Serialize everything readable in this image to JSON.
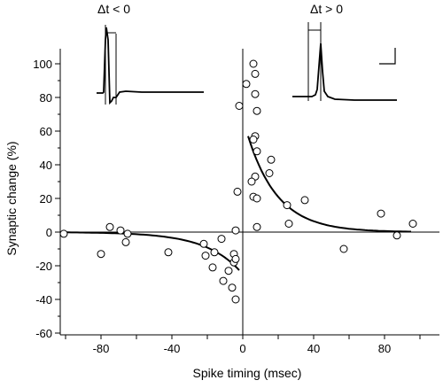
{
  "chart_data": {
    "type": "scatter",
    "title": "",
    "xlabel": "Spike timing (msec)",
    "ylabel": "Synaptic change (%)",
    "xlim": [
      -105,
      100
    ],
    "ylim": [
      -60,
      105
    ],
    "x_ticks": [
      -80,
      -40,
      0,
      40,
      80
    ],
    "y_ticks": [
      -60,
      -40,
      -20,
      0,
      20,
      40,
      60,
      80,
      100
    ],
    "grid": false,
    "inset_labels": {
      "left": "Δt < 0",
      "right": "Δt > 0"
    },
    "points": [
      {
        "x": -101,
        "y": -1
      },
      {
        "x": -80,
        "y": -13
      },
      {
        "x": -75,
        "y": 3
      },
      {
        "x": -69,
        "y": 1
      },
      {
        "x": -66,
        "y": -6
      },
      {
        "x": -65,
        "y": -1
      },
      {
        "x": -42,
        "y": -12
      },
      {
        "x": -22,
        "y": -7
      },
      {
        "x": -21,
        "y": -14
      },
      {
        "x": -17,
        "y": -21
      },
      {
        "x": -16,
        "y": -12
      },
      {
        "x": -12,
        "y": -4
      },
      {
        "x": -11,
        "y": -29
      },
      {
        "x": -8,
        "y": -23
      },
      {
        "x": -6,
        "y": -33
      },
      {
        "x": -5,
        "y": -13
      },
      {
        "x": -5,
        "y": -18
      },
      {
        "x": -4,
        "y": -40
      },
      {
        "x": -4,
        "y": -16
      },
      {
        "x": -4,
        "y": 1
      },
      {
        "x": -3,
        "y": 24
      },
      {
        "x": -2,
        "y": 75
      },
      {
        "x": 2,
        "y": 88
      },
      {
        "x": 6,
        "y": 100
      },
      {
        "x": 7,
        "y": 94
      },
      {
        "x": 7,
        "y": 82
      },
      {
        "x": 7,
        "y": 57
      },
      {
        "x": 6,
        "y": 55
      },
      {
        "x": 8,
        "y": 72
      },
      {
        "x": 8,
        "y": 48
      },
      {
        "x": 7,
        "y": 33
      },
      {
        "x": 5,
        "y": 30
      },
      {
        "x": 6,
        "y": 21
      },
      {
        "x": 8,
        "y": 20
      },
      {
        "x": 8,
        "y": 3
      },
      {
        "x": 16,
        "y": 43
      },
      {
        "x": 15,
        "y": 35
      },
      {
        "x": 25,
        "y": 16
      },
      {
        "x": 26,
        "y": 5
      },
      {
        "x": 35,
        "y": 19
      },
      {
        "x": 57,
        "y": -10
      },
      {
        "x": 78,
        "y": 11
      },
      {
        "x": 87,
        "y": -2
      },
      {
        "x": 96,
        "y": 5
      }
    ],
    "fits": [
      {
        "branch": "negative",
        "amplitude": -25,
        "tau": 20,
        "x_range": [
          -100,
          -2
        ]
      },
      {
        "branch": "positive",
        "amplitude": 68,
        "tau": 17,
        "x_range": [
          3,
          95
        ]
      }
    ]
  }
}
